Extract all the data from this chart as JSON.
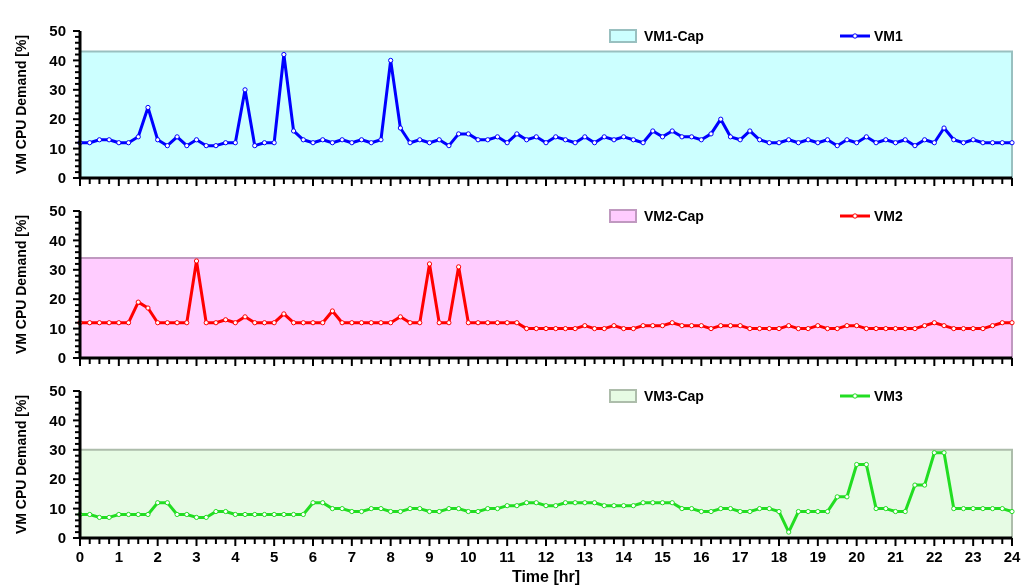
{
  "chart_data": [
    {
      "type": "line",
      "ylabel": "VM CPU Demand [%]",
      "tick_labels": "y",
      "legend": "top right",
      "line_style": "solid",
      "grid": false,
      "x": [
        0,
        0.25,
        0.5,
        0.75,
        1,
        1.25,
        1.5,
        1.75,
        2,
        2.25,
        2.5,
        2.75,
        3,
        3.25,
        3.5,
        3.75,
        4,
        4.25,
        4.5,
        4.75,
        5,
        5.25,
        5.5,
        5.75,
        6,
        6.25,
        6.5,
        6.75,
        7,
        7.25,
        7.5,
        7.75,
        8,
        8.25,
        8.5,
        8.75,
        9,
        9.25,
        9.5,
        9.75,
        10,
        10.25,
        10.5,
        10.75,
        11,
        11.25,
        11.5,
        11.75,
        12,
        12.25,
        12.5,
        12.75,
        13,
        13.25,
        13.5,
        13.75,
        14,
        14.25,
        14.5,
        14.75,
        15,
        15.25,
        15.5,
        15.75,
        16,
        16.25,
        16.5,
        16.75,
        17,
        17.25,
        17.5,
        17.75,
        18,
        18.25,
        18.5,
        18.75,
        19,
        19.25,
        19.5,
        19.75,
        20,
        20.25,
        20.5,
        20.75,
        21,
        21.25,
        21.5,
        21.75,
        22,
        22.25,
        22.5,
        22.75,
        23,
        23.25,
        23.5,
        23.75,
        24
      ],
      "xlim": [
        0,
        24
      ],
      "ylim": [
        0,
        50
      ],
      "xticks": [
        0,
        {
          "value": 0.25,
          "label": null
        },
        {
          "value": 0.5,
          "label": null
        },
        {
          "value": 0.75,
          "label": null
        },
        1,
        {
          "value": 1.25,
          "label": null
        },
        {
          "value": 1.5,
          "label": null
        },
        {
          "value": 1.75,
          "label": null
        },
        2,
        {
          "value": 2.25,
          "label": null
        },
        {
          "value": 2.5,
          "label": null
        },
        {
          "value": 2.75,
          "label": null
        },
        3,
        {
          "value": 3.25,
          "label": null
        },
        {
          "value": 3.5,
          "label": null
        },
        {
          "value": 3.75,
          "label": null
        },
        4,
        {
          "value": 4.25,
          "label": null
        },
        {
          "value": 4.5,
          "label": null
        },
        {
          "value": 4.75,
          "label": null
        },
        5,
        {
          "value": 5.25,
          "label": null
        },
        {
          "value": 5.5,
          "label": null
        },
        {
          "value": 5.75,
          "label": null
        },
        6,
        {
          "value": 6.25,
          "label": null
        },
        {
          "value": 6.5,
          "label": null
        },
        {
          "value": 6.75,
          "label": null
        },
        7,
        {
          "value": 7.25,
          "label": null
        },
        {
          "value": 7.5,
          "label": null
        },
        {
          "value": 7.75,
          "label": null
        },
        8,
        {
          "value": 8.25,
          "label": null
        },
        {
          "value": 8.5,
          "label": null
        },
        {
          "value": 8.75,
          "label": null
        },
        9,
        {
          "value": 9.25,
          "label": null
        },
        {
          "value": 9.5,
          "label": null
        },
        {
          "value": 9.75,
          "label": null
        },
        10,
        {
          "value": 10.25,
          "label": null
        },
        {
          "value": 10.5,
          "label": null
        },
        {
          "value": 10.75,
          "label": null
        },
        11,
        {
          "value": 11.25,
          "label": null
        },
        {
          "value": 11.5,
          "label": null
        },
        {
          "value": 11.75,
          "label": null
        },
        12,
        {
          "value": 12.25,
          "label": null
        },
        {
          "value": 12.5,
          "label": null
        },
        {
          "value": 12.75,
          "label": null
        },
        13,
        {
          "value": 13.25,
          "label": null
        },
        {
          "value": 13.5,
          "label": null
        },
        {
          "value": 13.75,
          "label": null
        },
        14,
        {
          "value": 14.25,
          "label": null
        },
        {
          "value": 14.5,
          "label": null
        },
        {
          "value": 14.75,
          "label": null
        },
        15,
        {
          "value": 15.25,
          "label": null
        },
        {
          "value": 15.5,
          "label": null
        },
        {
          "value": 15.75,
          "label": null
        },
        16,
        {
          "value": 16.25,
          "label": null
        },
        {
          "value": 16.5,
          "label": null
        },
        {
          "value": 16.75,
          "label": null
        },
        17,
        {
          "value": 17.25,
          "label": null
        },
        {
          "value": 17.5,
          "label": null
        },
        {
          "value": 17.75,
          "label": null
        },
        18,
        {
          "value": 18.25,
          "label": null
        },
        {
          "value": 18.5,
          "label": null
        },
        {
          "value": 18.75,
          "label": null
        },
        19,
        {
          "value": 19.25,
          "label": null
        },
        {
          "value": 19.5,
          "label": null
        },
        {
          "value": 19.75,
          "label": null
        },
        20,
        {
          "value": 20.25,
          "label": null
        },
        {
          "value": 20.5,
          "label": null
        },
        {
          "value": 20.75,
          "label": null
        },
        21,
        {
          "value": 21.25,
          "label": null
        },
        {
          "value": 21.5,
          "label": null
        },
        {
          "value": 21.75,
          "label": null
        },
        22,
        {
          "value": 22.25,
          "label": null
        },
        {
          "value": 22.5,
          "label": null
        },
        {
          "value": 22.75,
          "label": null
        },
        23,
        {
          "value": 23.25,
          "label": null
        },
        {
          "value": 23.5,
          "label": null
        },
        {
          "value": 23.75,
          "label": null
        },
        24
      ],
      "yticks": [
        0,
        {
          "value": 2,
          "label": null
        },
        {
          "value": 4,
          "label": null
        },
        {
          "value": 6,
          "label": null
        },
        {
          "value": 8,
          "label": null
        },
        10,
        {
          "value": 12,
          "label": null
        },
        {
          "value": 14,
          "label": null
        },
        {
          "value": 16,
          "label": null
        },
        {
          "value": 18,
          "label": null
        },
        20,
        {
          "value": 22,
          "label": null
        },
        {
          "value": 24,
          "label": null
        },
        {
          "value": 26,
          "label": null
        },
        {
          "value": 28,
          "label": null
        },
        30,
        {
          "value": 32,
          "label": null
        },
        {
          "value": 34,
          "label": null
        },
        {
          "value": 36,
          "label": null
        },
        {
          "value": 38,
          "label": null
        },
        40,
        {
          "value": 42,
          "label": null
        },
        {
          "value": 44,
          "label": null
        },
        {
          "value": 46,
          "label": null
        },
        {
          "value": 48,
          "label": null
        },
        50
      ],
      "series": [
        {
          "name": "VM1-Cap",
          "type": "area",
          "color": "#ccffff",
          "values": [
            43,
            43,
            43,
            43,
            43,
            43,
            43,
            43,
            43,
            43,
            43,
            43,
            43,
            43,
            43,
            43,
            43,
            43,
            43,
            43,
            43,
            43,
            43,
            43,
            43,
            43,
            43,
            43,
            43,
            43,
            43,
            43,
            43,
            43,
            43,
            43,
            43,
            43,
            43,
            43,
            43,
            43,
            43,
            43,
            43,
            43,
            43,
            43,
            43,
            43,
            43,
            43,
            43,
            43,
            43,
            43,
            43,
            43,
            43,
            43,
            43,
            43,
            43,
            43,
            43,
            43,
            43,
            43,
            43,
            43,
            43,
            43,
            43,
            43,
            43,
            43,
            43,
            43,
            43,
            43,
            43,
            43,
            43,
            43,
            43,
            43,
            43,
            43,
            43,
            43,
            43,
            43,
            43,
            43,
            43,
            43,
            43
          ]
        },
        {
          "name": "VM1",
          "marker": "circle",
          "color": "#0000ff",
          "values": [
            12,
            12,
            13,
            13,
            12,
            12,
            14,
            24,
            13,
            11,
            14,
            11,
            13,
            11,
            11,
            12,
            12,
            30,
            11,
            12,
            12,
            42,
            16,
            13,
            12,
            13,
            12,
            13,
            12,
            13,
            12,
            13,
            40,
            17,
            12,
            13,
            12,
            13,
            11,
            15,
            15,
            13,
            13,
            14,
            12,
            15,
            13,
            14,
            12,
            14,
            13,
            12,
            14,
            12,
            14,
            13,
            14,
            13,
            12,
            16,
            14,
            16,
            14,
            14,
            13,
            15,
            20,
            14,
            13,
            16,
            13,
            12,
            12,
            13,
            12,
            13,
            12,
            13,
            11,
            13,
            12,
            14,
            12,
            13,
            12,
            13,
            11,
            13,
            12,
            17,
            13,
            12,
            13,
            12,
            12,
            12,
            12
          ]
        }
      ]
    },
    {
      "type": "line",
      "ylabel": "VM CPU Demand [%]",
      "tick_labels": "y",
      "legend": "top right",
      "line_style": "solid",
      "grid": false,
      "x": [
        0,
        0.25,
        0.5,
        0.75,
        1,
        1.25,
        1.5,
        1.75,
        2,
        2.25,
        2.5,
        2.75,
        3,
        3.25,
        3.5,
        3.75,
        4,
        4.25,
        4.5,
        4.75,
        5,
        5.25,
        5.5,
        5.75,
        6,
        6.25,
        6.5,
        6.75,
        7,
        7.25,
        7.5,
        7.75,
        8,
        8.25,
        8.5,
        8.75,
        9,
        9.25,
        9.5,
        9.75,
        10,
        10.25,
        10.5,
        10.75,
        11,
        11.25,
        11.5,
        11.75,
        12,
        12.25,
        12.5,
        12.75,
        13,
        13.25,
        13.5,
        13.75,
        14,
        14.25,
        14.5,
        14.75,
        15,
        15.25,
        15.5,
        15.75,
        16,
        16.25,
        16.5,
        16.75,
        17,
        17.25,
        17.5,
        17.75,
        18,
        18.25,
        18.5,
        18.75,
        19,
        19.25,
        19.5,
        19.75,
        20,
        20.25,
        20.5,
        20.75,
        21,
        21.25,
        21.5,
        21.75,
        22,
        22.25,
        22.5,
        22.75,
        23,
        23.25,
        23.5,
        23.75,
        24
      ],
      "xlim": [
        0,
        24
      ],
      "ylim": [
        0,
        50
      ],
      "xticks": [
        0,
        {
          "value": 0.25,
          "label": null
        },
        {
          "value": 0.5,
          "label": null
        },
        {
          "value": 0.75,
          "label": null
        },
        1,
        {
          "value": 1.25,
          "label": null
        },
        {
          "value": 1.5,
          "label": null
        },
        {
          "value": 1.75,
          "label": null
        },
        2,
        {
          "value": 2.25,
          "label": null
        },
        {
          "value": 2.5,
          "label": null
        },
        {
          "value": 2.75,
          "label": null
        },
        3,
        {
          "value": 3.25,
          "label": null
        },
        {
          "value": 3.5,
          "label": null
        },
        {
          "value": 3.75,
          "label": null
        },
        4,
        {
          "value": 4.25,
          "label": null
        },
        {
          "value": 4.5,
          "label": null
        },
        {
          "value": 4.75,
          "label": null
        },
        5,
        {
          "value": 5.25,
          "label": null
        },
        {
          "value": 5.5,
          "label": null
        },
        {
          "value": 5.75,
          "label": null
        },
        6,
        {
          "value": 6.25,
          "label": null
        },
        {
          "value": 6.5,
          "label": null
        },
        {
          "value": 6.75,
          "label": null
        },
        7,
        {
          "value": 7.25,
          "label": null
        },
        {
          "value": 7.5,
          "label": null
        },
        {
          "value": 7.75,
          "label": null
        },
        8,
        {
          "value": 8.25,
          "label": null
        },
        {
          "value": 8.5,
          "label": null
        },
        {
          "value": 8.75,
          "label": null
        },
        9,
        {
          "value": 9.25,
          "label": null
        },
        {
          "value": 9.5,
          "label": null
        },
        {
          "value": 9.75,
          "label": null
        },
        10,
        {
          "value": 10.25,
          "label": null
        },
        {
          "value": 10.5,
          "label": null
        },
        {
          "value": 10.75,
          "label": null
        },
        11,
        {
          "value": 11.25,
          "label": null
        },
        {
          "value": 11.5,
          "label": null
        },
        {
          "value": 11.75,
          "label": null
        },
        12,
        {
          "value": 12.25,
          "label": null
        },
        {
          "value": 12.5,
          "label": null
        },
        {
          "value": 12.75,
          "label": null
        },
        13,
        {
          "value": 13.25,
          "label": null
        },
        {
          "value": 13.5,
          "label": null
        },
        {
          "value": 13.75,
          "label": null
        },
        14,
        {
          "value": 14.25,
          "label": null
        },
        {
          "value": 14.5,
          "label": null
        },
        {
          "value": 14.75,
          "label": null
        },
        15,
        {
          "value": 15.25,
          "label": null
        },
        {
          "value": 15.5,
          "label": null
        },
        {
          "value": 15.75,
          "label": null
        },
        16,
        {
          "value": 16.25,
          "label": null
        },
        {
          "value": 16.5,
          "label": null
        },
        {
          "value": 16.75,
          "label": null
        },
        17,
        {
          "value": 17.25,
          "label": null
        },
        {
          "value": 17.5,
          "label": null
        },
        {
          "value": 17.75,
          "label": null
        },
        18,
        {
          "value": 18.25,
          "label": null
        },
        {
          "value": 18.5,
          "label": null
        },
        {
          "value": 18.75,
          "label": null
        },
        19,
        {
          "value": 19.25,
          "label": null
        },
        {
          "value": 19.5,
          "label": null
        },
        {
          "value": 19.75,
          "label": null
        },
        20,
        {
          "value": 20.25,
          "label": null
        },
        {
          "value": 20.5,
          "label": null
        },
        {
          "value": 20.75,
          "label": null
        },
        21,
        {
          "value": 21.25,
          "label": null
        },
        {
          "value": 21.5,
          "label": null
        },
        {
          "value": 21.75,
          "label": null
        },
        22,
        {
          "value": 22.25,
          "label": null
        },
        {
          "value": 22.5,
          "label": null
        },
        {
          "value": 22.75,
          "label": null
        },
        23,
        {
          "value": 23.25,
          "label": null
        },
        {
          "value": 23.5,
          "label": null
        },
        {
          "value": 23.75,
          "label": null
        },
        24
      ],
      "yticks": [
        0,
        {
          "value": 2,
          "label": null
        },
        {
          "value": 4,
          "label": null
        },
        {
          "value": 6,
          "label": null
        },
        {
          "value": 8,
          "label": null
        },
        10,
        {
          "value": 12,
          "label": null
        },
        {
          "value": 14,
          "label": null
        },
        {
          "value": 16,
          "label": null
        },
        {
          "value": 18,
          "label": null
        },
        20,
        {
          "value": 22,
          "label": null
        },
        {
          "value": 24,
          "label": null
        },
        {
          "value": 26,
          "label": null
        },
        {
          "value": 28,
          "label": null
        },
        30,
        {
          "value": 32,
          "label": null
        },
        {
          "value": 34,
          "label": null
        },
        {
          "value": 36,
          "label": null
        },
        {
          "value": 38,
          "label": null
        },
        40,
        {
          "value": 42,
          "label": null
        },
        {
          "value": 44,
          "label": null
        },
        {
          "value": 46,
          "label": null
        },
        {
          "value": 48,
          "label": null
        },
        50
      ],
      "series": [
        {
          "name": "VM2-Cap",
          "type": "area",
          "color": "#ffccff",
          "values": [
            34,
            34,
            34,
            34,
            34,
            34,
            34,
            34,
            34,
            34,
            34,
            34,
            34,
            34,
            34,
            34,
            34,
            34,
            34,
            34,
            34,
            34,
            34,
            34,
            34,
            34,
            34,
            34,
            34,
            34,
            34,
            34,
            34,
            34,
            34,
            34,
            34,
            34,
            34,
            34,
            34,
            34,
            34,
            34,
            34,
            34,
            34,
            34,
            34,
            34,
            34,
            34,
            34,
            34,
            34,
            34,
            34,
            34,
            34,
            34,
            34,
            34,
            34,
            34,
            34,
            34,
            34,
            34,
            34,
            34,
            34,
            34,
            34,
            34,
            34,
            34,
            34,
            34,
            34,
            34,
            34,
            34,
            34,
            34,
            34,
            34,
            34,
            34,
            34,
            34,
            34,
            34,
            34,
            34,
            34,
            34,
            34
          ]
        },
        {
          "name": "VM2",
          "marker": "circle",
          "color": "#ff0000",
          "values": [
            12,
            12,
            12,
            12,
            12,
            12,
            19,
            17,
            12,
            12,
            12,
            12,
            33,
            12,
            12,
            13,
            12,
            14,
            12,
            12,
            12,
            15,
            12,
            12,
            12,
            12,
            16,
            12,
            12,
            12,
            12,
            12,
            12,
            14,
            12,
            12,
            32,
            12,
            12,
            31,
            12,
            12,
            12,
            12,
            12,
            12,
            10,
            10,
            10,
            10,
            10,
            10,
            11,
            10,
            10,
            11,
            10,
            10,
            11,
            11,
            11,
            12,
            11,
            11,
            11,
            10,
            11,
            11,
            11,
            10,
            10,
            10,
            10,
            11,
            10,
            10,
            11,
            10,
            10,
            11,
            11,
            10,
            10,
            10,
            10,
            10,
            10,
            11,
            12,
            11,
            10,
            10,
            10,
            10,
            11,
            12,
            12
          ]
        }
      ]
    },
    {
      "type": "line",
      "ylabel": "VM CPU Demand [%]",
      "xlabel": "Time [hr]",
      "legend": "top right",
      "line_style": "solid",
      "grid": false,
      "x": [
        0,
        0.25,
        0.5,
        0.75,
        1,
        1.25,
        1.5,
        1.75,
        2,
        2.25,
        2.5,
        2.75,
        3,
        3.25,
        3.5,
        3.75,
        4,
        4.25,
        4.5,
        4.75,
        5,
        5.25,
        5.5,
        5.75,
        6,
        6.25,
        6.5,
        6.75,
        7,
        7.25,
        7.5,
        7.75,
        8,
        8.25,
        8.5,
        8.75,
        9,
        9.25,
        9.5,
        9.75,
        10,
        10.25,
        10.5,
        10.75,
        11,
        11.25,
        11.5,
        11.75,
        12,
        12.25,
        12.5,
        12.75,
        13,
        13.25,
        13.5,
        13.75,
        14,
        14.25,
        14.5,
        14.75,
        15,
        15.25,
        15.5,
        15.75,
        16,
        16.25,
        16.5,
        16.75,
        17,
        17.25,
        17.5,
        17.75,
        18,
        18.25,
        18.5,
        18.75,
        19,
        19.25,
        19.5,
        19.75,
        20,
        20.25,
        20.5,
        20.75,
        21,
        21.25,
        21.5,
        21.75,
        22,
        22.25,
        22.5,
        22.75,
        23,
        23.25,
        23.5,
        23.75,
        24
      ],
      "xlim": [
        0,
        24
      ],
      "ylim": [
        0,
        50
      ],
      "xticks": [
        0,
        {
          "value": 0.25,
          "label": null
        },
        {
          "value": 0.5,
          "label": null
        },
        {
          "value": 0.75,
          "label": null
        },
        1,
        {
          "value": 1.25,
          "label": null
        },
        {
          "value": 1.5,
          "label": null
        },
        {
          "value": 1.75,
          "label": null
        },
        2,
        {
          "value": 2.25,
          "label": null
        },
        {
          "value": 2.5,
          "label": null
        },
        {
          "value": 2.75,
          "label": null
        },
        3,
        {
          "value": 3.25,
          "label": null
        },
        {
          "value": 3.5,
          "label": null
        },
        {
          "value": 3.75,
          "label": null
        },
        4,
        {
          "value": 4.25,
          "label": null
        },
        {
          "value": 4.5,
          "label": null
        },
        {
          "value": 4.75,
          "label": null
        },
        5,
        {
          "value": 5.25,
          "label": null
        },
        {
          "value": 5.5,
          "label": null
        },
        {
          "value": 5.75,
          "label": null
        },
        6,
        {
          "value": 6.25,
          "label": null
        },
        {
          "value": 6.5,
          "label": null
        },
        {
          "value": 6.75,
          "label": null
        },
        7,
        {
          "value": 7.25,
          "label": null
        },
        {
          "value": 7.5,
          "label": null
        },
        {
          "value": 7.75,
          "label": null
        },
        8,
        {
          "value": 8.25,
          "label": null
        },
        {
          "value": 8.5,
          "label": null
        },
        {
          "value": 8.75,
          "label": null
        },
        9,
        {
          "value": 9.25,
          "label": null
        },
        {
          "value": 9.5,
          "label": null
        },
        {
          "value": 9.75,
          "label": null
        },
        10,
        {
          "value": 10.25,
          "label": null
        },
        {
          "value": 10.5,
          "label": null
        },
        {
          "value": 10.75,
          "label": null
        },
        11,
        {
          "value": 11.25,
          "label": null
        },
        {
          "value": 11.5,
          "label": null
        },
        {
          "value": 11.75,
          "label": null
        },
        12,
        {
          "value": 12.25,
          "label": null
        },
        {
          "value": 12.5,
          "label": null
        },
        {
          "value": 12.75,
          "label": null
        },
        13,
        {
          "value": 13.25,
          "label": null
        },
        {
          "value": 13.5,
          "label": null
        },
        {
          "value": 13.75,
          "label": null
        },
        14,
        {
          "value": 14.25,
          "label": null
        },
        {
          "value": 14.5,
          "label": null
        },
        {
          "value": 14.75,
          "label": null
        },
        15,
        {
          "value": 15.25,
          "label": null
        },
        {
          "value": 15.5,
          "label": null
        },
        {
          "value": 15.75,
          "label": null
        },
        16,
        {
          "value": 16.25,
          "label": null
        },
        {
          "value": 16.5,
          "label": null
        },
        {
          "value": 16.75,
          "label": null
        },
        17,
        {
          "value": 17.25,
          "label": null
        },
        {
          "value": 17.5,
          "label": null
        },
        {
          "value": 17.75,
          "label": null
        },
        18,
        {
          "value": 18.25,
          "label": null
        },
        {
          "value": 18.5,
          "label": null
        },
        {
          "value": 18.75,
          "label": null
        },
        19,
        {
          "value": 19.25,
          "label": null
        },
        {
          "value": 19.5,
          "label": null
        },
        {
          "value": 19.75,
          "label": null
        },
        20,
        {
          "value": 20.25,
          "label": null
        },
        {
          "value": 20.5,
          "label": null
        },
        {
          "value": 20.75,
          "label": null
        },
        21,
        {
          "value": 21.25,
          "label": null
        },
        {
          "value": 21.5,
          "label": null
        },
        {
          "value": 21.75,
          "label": null
        },
        22,
        {
          "value": 22.25,
          "label": null
        },
        {
          "value": 22.5,
          "label": null
        },
        {
          "value": 22.75,
          "label": null
        },
        23,
        {
          "value": 23.25,
          "label": null
        },
        {
          "value": 23.5,
          "label": null
        },
        {
          "value": 23.75,
          "label": null
        },
        24
      ],
      "yticks": [
        0,
        {
          "value": 2,
          "label": null
        },
        {
          "value": 4,
          "label": null
        },
        {
          "value": 6,
          "label": null
        },
        {
          "value": 8,
          "label": null
        },
        10,
        {
          "value": 12,
          "label": null
        },
        {
          "value": 14,
          "label": null
        },
        {
          "value": 16,
          "label": null
        },
        {
          "value": 18,
          "label": null
        },
        20,
        {
          "value": 22,
          "label": null
        },
        {
          "value": 24,
          "label": null
        },
        {
          "value": 26,
          "label": null
        },
        {
          "value": 28,
          "label": null
        },
        30,
        {
          "value": 32,
          "label": null
        },
        {
          "value": 34,
          "label": null
        },
        {
          "value": 36,
          "label": null
        },
        {
          "value": 38,
          "label": null
        },
        40,
        {
          "value": 42,
          "label": null
        },
        {
          "value": 44,
          "label": null
        },
        {
          "value": 46,
          "label": null
        },
        {
          "value": 48,
          "label": null
        },
        50
      ],
      "series": [
        {
          "name": "VM3-Cap",
          "type": "area",
          "color": "#e6fbe4",
          "values": [
            30,
            30,
            30,
            30,
            30,
            30,
            30,
            30,
            30,
            30,
            30,
            30,
            30,
            30,
            30,
            30,
            30,
            30,
            30,
            30,
            30,
            30,
            30,
            30,
            30,
            30,
            30,
            30,
            30,
            30,
            30,
            30,
            30,
            30,
            30,
            30,
            30,
            30,
            30,
            30,
            30,
            30,
            30,
            30,
            30,
            30,
            30,
            30,
            30,
            30,
            30,
            30,
            30,
            30,
            30,
            30,
            30,
            30,
            30,
            30,
            30,
            30,
            30,
            30,
            30,
            30,
            30,
            30,
            30,
            30,
            30,
            30,
            30,
            30,
            30,
            30,
            30,
            30,
            30,
            30,
            30,
            30,
            30,
            30,
            30,
            30,
            30,
            30,
            30,
            30,
            30,
            30,
            30,
            30,
            30,
            30,
            30
          ]
        },
        {
          "name": "VM3",
          "marker": "circle",
          "color": "#22dd22",
          "values": [
            8,
            8,
            7,
            7,
            8,
            8,
            8,
            8,
            12,
            12,
            8,
            8,
            7,
            7,
            9,
            9,
            8,
            8,
            8,
            8,
            8,
            8,
            8,
            8,
            12,
            12,
            10,
            10,
            9,
            9,
            10,
            10,
            9,
            9,
            10,
            10,
            9,
            9,
            10,
            10,
            9,
            9,
            10,
            10,
            11,
            11,
            12,
            12,
            11,
            11,
            12,
            12,
            12,
            12,
            11,
            11,
            11,
            11,
            12,
            12,
            12,
            12,
            10,
            10,
            9,
            9,
            10,
            10,
            9,
            9,
            10,
            10,
            9,
            2,
            9,
            9,
            9,
            9,
            14,
            14,
            25,
            25,
            10,
            10,
            9,
            9,
            18,
            18,
            29,
            29,
            10,
            10,
            10,
            10,
            10,
            10,
            9
          ]
        }
      ]
    }
  ]
}
